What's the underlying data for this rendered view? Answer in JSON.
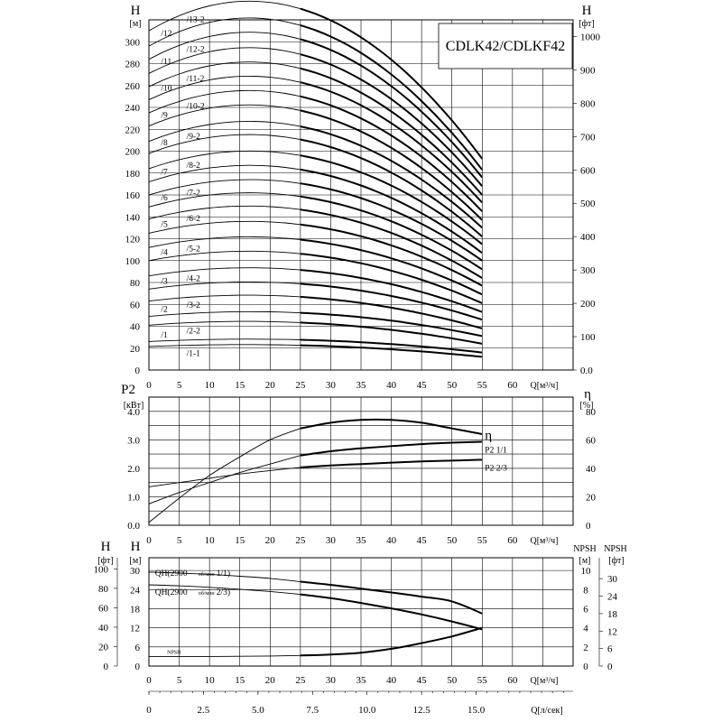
{
  "chart_data": [
    {
      "type": "line",
      "title": "CDLK42/CDLKF42",
      "xlabel": "Q[м³/ч]",
      "ylabel_left": "H",
      "ylabel_left_unit": "[м]",
      "ylabel_right": "H",
      "ylabel_right_unit": "[фт]",
      "xlim": [
        0,
        70
      ],
      "ylim": [
        0,
        320
      ],
      "ylim_right": [
        0,
        1049.9
      ],
      "x_ticks": [
        "0",
        "5",
        "10",
        "15",
        "20",
        "25",
        "30",
        "35",
        "40",
        "45",
        "50",
        "55",
        "60"
      ],
      "y_ticks": [
        "0",
        "20",
        "40",
        "60",
        "80",
        "100",
        "120",
        "140",
        "160",
        "180",
        "200",
        "220",
        "240",
        "260",
        "280",
        "300"
      ],
      "y_ticks_right": [
        "0.0",
        "100",
        "200",
        "300",
        "400",
        "500",
        "600",
        "700",
        "800",
        "900",
        "1000"
      ],
      "grid": true,
      "series": [
        {
          "name": "/1-1",
          "shut": 21.5,
          "end": 12
        },
        {
          "name": "/1",
          "shut": 26,
          "end": 16
        },
        {
          "name": "/2-2",
          "shut": 41,
          "end": 24
        },
        {
          "name": "/2",
          "shut": 49,
          "end": 31
        },
        {
          "name": "/3-2",
          "shut": 63,
          "end": 38
        },
        {
          "name": "/3",
          "shut": 74,
          "end": 46
        },
        {
          "name": "/4-2",
          "shut": 86,
          "end": 53
        },
        {
          "name": "/4",
          "shut": 100,
          "end": 61
        },
        {
          "name": "/5-2",
          "shut": 112,
          "end": 69
        },
        {
          "name": "/5",
          "shut": 125,
          "end": 77
        },
        {
          "name": "/6-2",
          "shut": 138,
          "end": 84
        },
        {
          "name": "/6",
          "shut": 149,
          "end": 92
        },
        {
          "name": "/7-2",
          "shut": 160,
          "end": 100
        },
        {
          "name": "/7",
          "shut": 172,
          "end": 107
        },
        {
          "name": "/8-2",
          "shut": 184,
          "end": 115
        },
        {
          "name": "/8",
          "shut": 198,
          "end": 122
        },
        {
          "name": "/9-2",
          "shut": 209,
          "end": 130
        },
        {
          "name": "/9",
          "shut": 223,
          "end": 137
        },
        {
          "name": "/10-2",
          "shut": 235,
          "end": 145
        },
        {
          "name": "/10",
          "shut": 247,
          "end": 153
        },
        {
          "name": "/11-2",
          "shut": 259,
          "end": 160
        },
        {
          "name": "/11",
          "shut": 271,
          "end": 168
        },
        {
          "name": "/12-2",
          "shut": 284,
          "end": 176
        },
        {
          "name": "/12",
          "shut": 296,
          "end": 183
        },
        {
          "name": "/13-2",
          "shut": 310,
          "end": 193
        }
      ]
    },
    {
      "type": "line",
      "ylabel_left": "P2",
      "ylabel_left_unit": "[кВт]",
      "ylabel_right": "η",
      "ylabel_right_unit": "[%]",
      "xlabel": "Q[м³/ч]",
      "xlim": [
        0,
        70
      ],
      "ylim": [
        0,
        4.5
      ],
      "ylim_right": [
        0,
        90
      ],
      "x_ticks": [
        "0",
        "5",
        "10",
        "15",
        "20",
        "25",
        "30",
        "35",
        "40",
        "45",
        "50",
        "55",
        "60"
      ],
      "y_ticks": [
        "0.0",
        "1.0",
        "2.0",
        "3.0",
        "4.0"
      ],
      "y_ticks_right": [
        "0",
        "20",
        "40",
        "60",
        "80"
      ],
      "grid": true,
      "series": [
        {
          "name": "η",
          "axis": "right",
          "x": [
            0,
            5,
            10,
            15,
            20,
            25,
            30,
            35,
            40,
            45,
            50,
            55
          ],
          "y": [
            2,
            19,
            35,
            48,
            60,
            68,
            72,
            74,
            74,
            72,
            68,
            64
          ]
        },
        {
          "name": "P2  1/1",
          "axis": "left",
          "x": [
            0,
            5,
            10,
            15,
            20,
            25,
            30,
            35,
            40,
            45,
            50,
            55
          ],
          "y": [
            0.75,
            1.15,
            1.5,
            1.85,
            2.15,
            2.45,
            2.6,
            2.7,
            2.78,
            2.85,
            2.9,
            2.93
          ]
        },
        {
          "name": "P2  2/3",
          "axis": "left",
          "x": [
            0,
            5,
            10,
            15,
            20,
            25,
            30,
            35,
            40,
            45,
            50,
            55
          ],
          "y": [
            1.35,
            1.5,
            1.65,
            1.8,
            1.92,
            2.03,
            2.1,
            2.15,
            2.2,
            2.24,
            2.27,
            2.3
          ]
        }
      ]
    },
    {
      "type": "line",
      "ylabel_left": "H",
      "ylabel_left_unit": "[м]",
      "ylabel_left_outer": "H",
      "ylabel_left_outer_unit": "[фт]",
      "ylabel_right": "NPSH",
      "ylabel_right_unit": "[м]",
      "ylabel_right_outer": "NPSH",
      "ylabel_right_outer_unit": "[фт]",
      "xlabel": "Q[м³/ч]",
      "xlabel2": "Q[л/сек]",
      "xlim": [
        0,
        70
      ],
      "ylim": [
        0,
        34
      ],
      "ylim_right": [
        0,
        11.33
      ],
      "x_ticks": [
        "0",
        "5",
        "10",
        "15",
        "20",
        "25",
        "30",
        "35",
        "40",
        "45",
        "50",
        "55",
        "60"
      ],
      "x2_ticks": [
        "0",
        "2.5",
        "5.0",
        "7.5",
        "10.0",
        "12.5",
        "15.0"
      ],
      "y_ticks": [
        "0",
        "6",
        "12",
        "18",
        "24",
        "30"
      ],
      "y_ticks_outer": [
        "0",
        "20",
        "40",
        "60",
        "80",
        "100"
      ],
      "y_ticks_right": [
        "0",
        "2",
        "4",
        "6",
        "8",
        "10"
      ],
      "y_ticks_right_outer": [
        "0",
        "6",
        "12",
        "18",
        "24",
        "30"
      ],
      "grid": true,
      "series": [
        {
          "name": "QH(2900",
          "name_sub": "об/мин",
          "name_tail": "1/1)",
          "x": [
            0,
            5,
            10,
            15,
            20,
            25,
            30,
            35,
            40,
            45,
            50,
            55
          ],
          "y": [
            29.5,
            29.2,
            28.8,
            28.2,
            27.5,
            26.5,
            25.5,
            24.3,
            23.1,
            21.8,
            20.3,
            16.5
          ]
        },
        {
          "name": "QH(2900",
          "name_sub": "об/мин",
          "name_tail": "2/3)",
          "x": [
            0,
            5,
            10,
            15,
            20,
            25,
            30,
            35,
            40,
            45,
            50,
            55
          ],
          "y": [
            25.5,
            25.2,
            24.7,
            24.1,
            23.4,
            22.5,
            21.3,
            19.8,
            18.1,
            16.2,
            14,
            11.5
          ]
        },
        {
          "name": "NPSH",
          "axis": "right",
          "x": [
            0,
            5,
            10,
            15,
            20,
            25,
            30,
            35,
            40,
            45,
            50,
            55
          ],
          "y": [
            1.0,
            1.0,
            1.0,
            1.02,
            1.05,
            1.1,
            1.2,
            1.4,
            1.8,
            2.4,
            3.1,
            4.0
          ]
        }
      ]
    }
  ]
}
